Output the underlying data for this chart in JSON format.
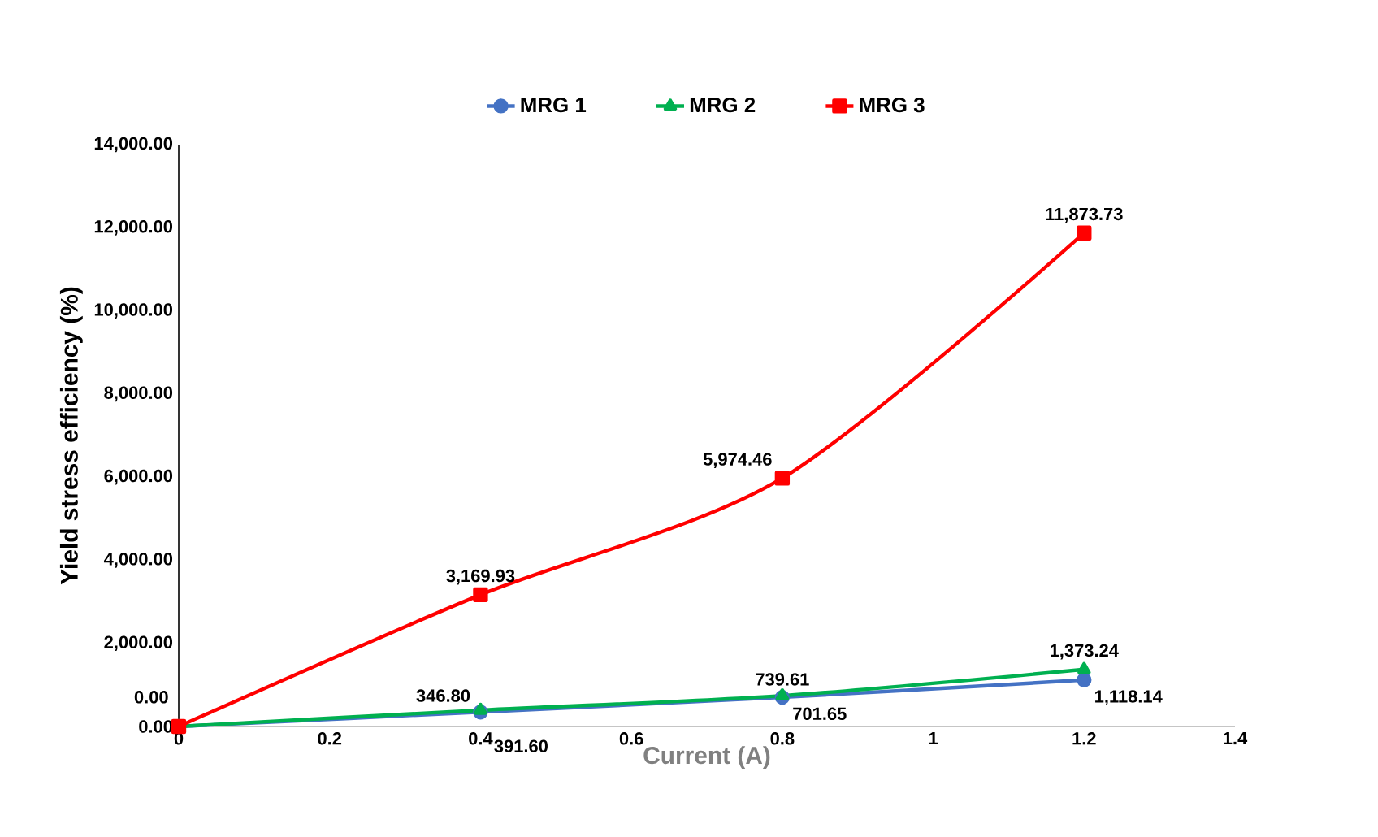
{
  "chart_data": {
    "type": "line",
    "xlabel": "Current (A)",
    "ylabel": "Yield stress efficiency (%)",
    "x": [
      0,
      0.4,
      0.8,
      1.2
    ],
    "series": [
      {
        "name": "MRG 1",
        "color": "#4472c4",
        "marker": "circle",
        "values": [
          0,
          346.8,
          701.65,
          1118.14
        ],
        "value_labels": [
          null,
          "346.80",
          "701.65",
          "1,118.14"
        ]
      },
      {
        "name": "MRG 2",
        "color": "#00b050",
        "marker": "triangle",
        "values": [
          0,
          391.6,
          739.61,
          1373.24
        ],
        "value_labels": [
          null,
          "391.60",
          "739.61",
          "1,373.24"
        ]
      },
      {
        "name": "MRG 3",
        "color": "#ff0000",
        "marker": "square",
        "values": [
          0,
          3169.93,
          5974.46,
          11873.73
        ],
        "value_labels": [
          "0.00",
          "3,169.93",
          "5,974.46",
          "11,873.73"
        ]
      }
    ],
    "xlim": [
      0,
      1.4
    ],
    "xticks": [
      0,
      0.2,
      0.4,
      0.6,
      0.8,
      1,
      1.2,
      1.4
    ],
    "ylim": [
      0,
      14000
    ],
    "yticks": [
      {
        "value": 0,
        "label": "0.00"
      },
      {
        "value": 2000,
        "label": "2,000.00"
      },
      {
        "value": 4000,
        "label": "4,000.00"
      },
      {
        "value": 6000,
        "label": "6,000.00"
      },
      {
        "value": 8000,
        "label": "8,000.00"
      },
      {
        "value": 10000,
        "label": "10,000.00"
      },
      {
        "value": 12000,
        "label": "12,000.00"
      },
      {
        "value": 14000,
        "label": "14,000.00"
      }
    ],
    "grid": false,
    "legend": "top",
    "line_style": "solid"
  }
}
